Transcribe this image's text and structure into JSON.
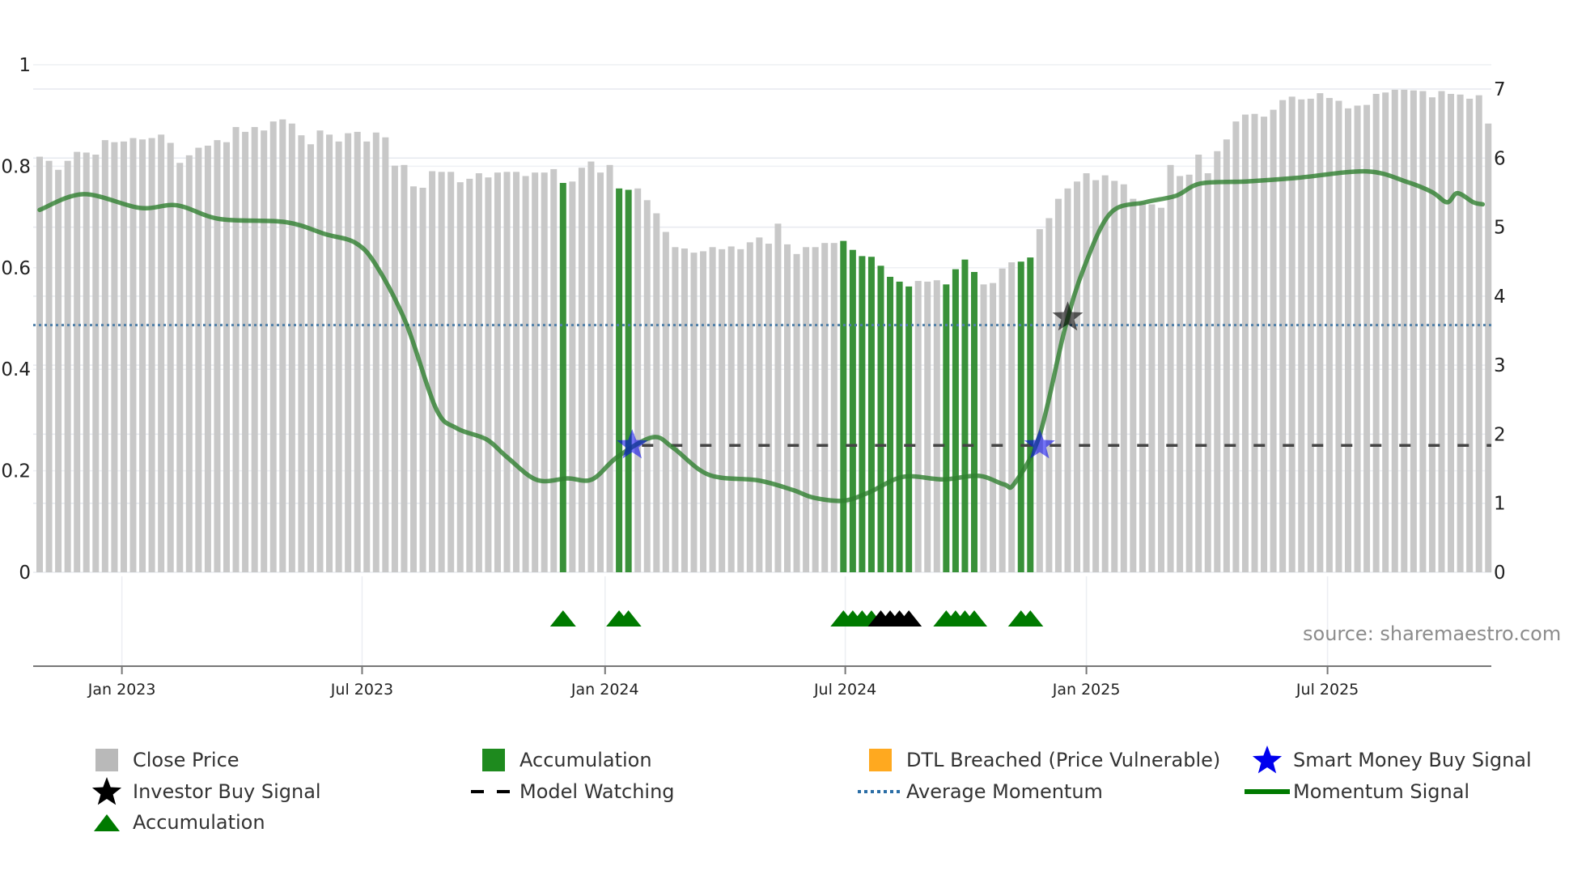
{
  "chart_data": {
    "type": "bar",
    "title": "",
    "source": "source: sharemaestro.com",
    "left_axis": {
      "ticks": [
        0,
        0.2,
        0.4,
        0.6,
        0.8,
        1
      ],
      "labels": [
        "0",
        "0.2",
        "0.4",
        "0.6",
        "0.8",
        "1"
      ],
      "range": [
        0,
        1
      ]
    },
    "right_axis": {
      "ticks": [
        0,
        1,
        2,
        3,
        4,
        5,
        6,
        7
      ],
      "labels": [
        "0",
        "1",
        "2",
        "3",
        "4",
        "5",
        "6",
        "7"
      ],
      "range": [
        0,
        7
      ]
    },
    "x_ticks": [
      {
        "label": "Jan 2023",
        "index": 8.8
      },
      {
        "label": "Jul 2023",
        "index": 34.5
      },
      {
        "label": "Jan 2024",
        "index": 60.5
      },
      {
        "label": "Jul 2024",
        "index": 86.2
      },
      {
        "label": "Jan 2025",
        "index": 112
      },
      {
        "label": "Jul 2025",
        "index": 137.8
      }
    ],
    "close_price": [
      6.02,
      5.96,
      5.83,
      5.96,
      6.09,
      6.08,
      6.05,
      6.26,
      6.23,
      6.24,
      6.29,
      6.27,
      6.29,
      6.34,
      6.22,
      5.93,
      6.04,
      6.15,
      6.18,
      6.26,
      6.23,
      6.45,
      6.38,
      6.45,
      6.4,
      6.53,
      6.56,
      6.5,
      6.33,
      6.2,
      6.4,
      6.34,
      6.24,
      6.36,
      6.38,
      6.24,
      6.37,
      6.3,
      5.89,
      5.9,
      5.59,
      5.57,
      5.81,
      5.8,
      5.8,
      5.65,
      5.7,
      5.78,
      5.72,
      5.79,
      5.8,
      5.8,
      5.74,
      5.79,
      5.79,
      5.84,
      5.64,
      5.66,
      5.86,
      5.95,
      5.79,
      5.9,
      5.56,
      5.54,
      5.56,
      5.39,
      5.2,
      4.93,
      4.71,
      4.69,
      4.63,
      4.65,
      4.71,
      4.68,
      4.72,
      4.68,
      4.78,
      4.85,
      4.76,
      5.05,
      4.75,
      4.61,
      4.71,
      4.71,
      4.77,
      4.77,
      4.8,
      4.67,
      4.58,
      4.57,
      4.44,
      4.28,
      4.21,
      4.14,
      4.22,
      4.21,
      4.23,
      4.17,
      4.39,
      4.53,
      4.35,
      4.17,
      4.19,
      4.4,
      4.49,
      4.5,
      4.56,
      4.97,
      5.13,
      5.41,
      5.56,
      5.66,
      5.78,
      5.68,
      5.75,
      5.67,
      5.62,
      5.41,
      5.36,
      5.33,
      5.28,
      5.9,
      5.74,
      5.76,
      6.05,
      5.78,
      6.1,
      6.27,
      6.53,
      6.63,
      6.64,
      6.6,
      6.7,
      6.84,
      6.89,
      6.85,
      6.86,
      6.94,
      6.87,
      6.83,
      6.72,
      6.76,
      6.77,
      6.93,
      6.95,
      6.99,
      6.99,
      6.98,
      6.97,
      6.88,
      6.97,
      6.93,
      6.92,
      6.86,
      6.91,
      6.5
    ],
    "accumulation_bar_indices": [
      56,
      62,
      63,
      86,
      87,
      88,
      89,
      90,
      91,
      92,
      93,
      97,
      98,
      99,
      100,
      105,
      106
    ],
    "momentum_signal": [
      [
        0,
        0.714
      ],
      [
        4.7,
        0.745
      ],
      [
        10.7,
        0.718
      ],
      [
        14.7,
        0.723
      ],
      [
        19.3,
        0.696
      ],
      [
        26.3,
        0.69
      ],
      [
        30.6,
        0.666
      ],
      [
        33.8,
        0.649
      ],
      [
        36,
        0.605
      ],
      [
        39.2,
        0.491
      ],
      [
        42.4,
        0.323
      ],
      [
        44.6,
        0.284
      ],
      [
        47.8,
        0.262
      ],
      [
        50,
        0.227
      ],
      [
        53.2,
        0.182
      ],
      [
        56.5,
        0.185
      ],
      [
        59.1,
        0.183
      ],
      [
        61.8,
        0.227
      ],
      [
        65.6,
        0.266
      ],
      [
        67.8,
        0.245
      ],
      [
        71.6,
        0.192
      ],
      [
        76.9,
        0.181
      ],
      [
        80.6,
        0.162
      ],
      [
        82.8,
        0.147
      ],
      [
        86,
        0.141
      ],
      [
        88.7,
        0.157
      ],
      [
        92.4,
        0.188
      ],
      [
        96.7,
        0.183
      ],
      [
        100.5,
        0.19
      ],
      [
        103.2,
        0.173
      ],
      [
        104.3,
        0.175
      ],
      [
        107,
        0.271
      ],
      [
        109.7,
        0.48
      ],
      [
        111.8,
        0.603
      ],
      [
        114.6,
        0.708
      ],
      [
        118.3,
        0.729
      ],
      [
        121.6,
        0.742
      ],
      [
        124.2,
        0.766
      ],
      [
        129.1,
        0.77
      ],
      [
        134.5,
        0.777
      ],
      [
        142,
        0.79
      ],
      [
        146.3,
        0.769
      ],
      [
        149,
        0.749
      ],
      [
        150.6,
        0.729
      ],
      [
        151.7,
        0.747
      ],
      [
        153.4,
        0.729
      ],
      [
        154.4,
        0.725
      ]
    ],
    "average_momentum": 0.487,
    "model_watching": {
      "value": 0.25,
      "from_index": 63.4
    },
    "smart_money_buy_signals": [
      [
        63.4,
        0.25
      ],
      [
        107,
        0.25
      ]
    ],
    "investor_buy_signals": [
      [
        110,
        0.502
      ]
    ],
    "accumulation_markers": [
      56,
      62,
      63,
      86,
      87,
      88,
      89,
      97,
      98,
      99,
      100,
      105,
      106
    ],
    "black_markers": [
      90,
      91,
      92,
      93
    ],
    "colors": {
      "close": "#c8c8c8",
      "accum_bar": "#2e8b2e",
      "momentum": "#2f7f2f",
      "avg": "#4f7fa8",
      "dtl": "#ffa91f",
      "smart": "#0000ee",
      "triangle": "#007a00"
    },
    "legend": [
      {
        "label": "Close Price",
        "icon": "gray-square-icon"
      },
      {
        "label": "Accumulation",
        "icon": "green-square-icon"
      },
      {
        "label": "DTL Breached (Price Vulnerable)",
        "icon": "orange-square-icon"
      },
      {
        "label": "Smart Money Buy Signal",
        "icon": "blue-star-icon"
      },
      {
        "label": "Investor Buy Signal",
        "icon": "black-star-icon"
      },
      {
        "label": "Model Watching",
        "icon": "dashed-line-icon"
      },
      {
        "label": "Average Momentum",
        "icon": "dotted-line-icon"
      },
      {
        "label": "Momentum Signal",
        "icon": "green-line-icon"
      },
      {
        "label": "Accumulation",
        "icon": "green-triangle-icon"
      }
    ]
  }
}
